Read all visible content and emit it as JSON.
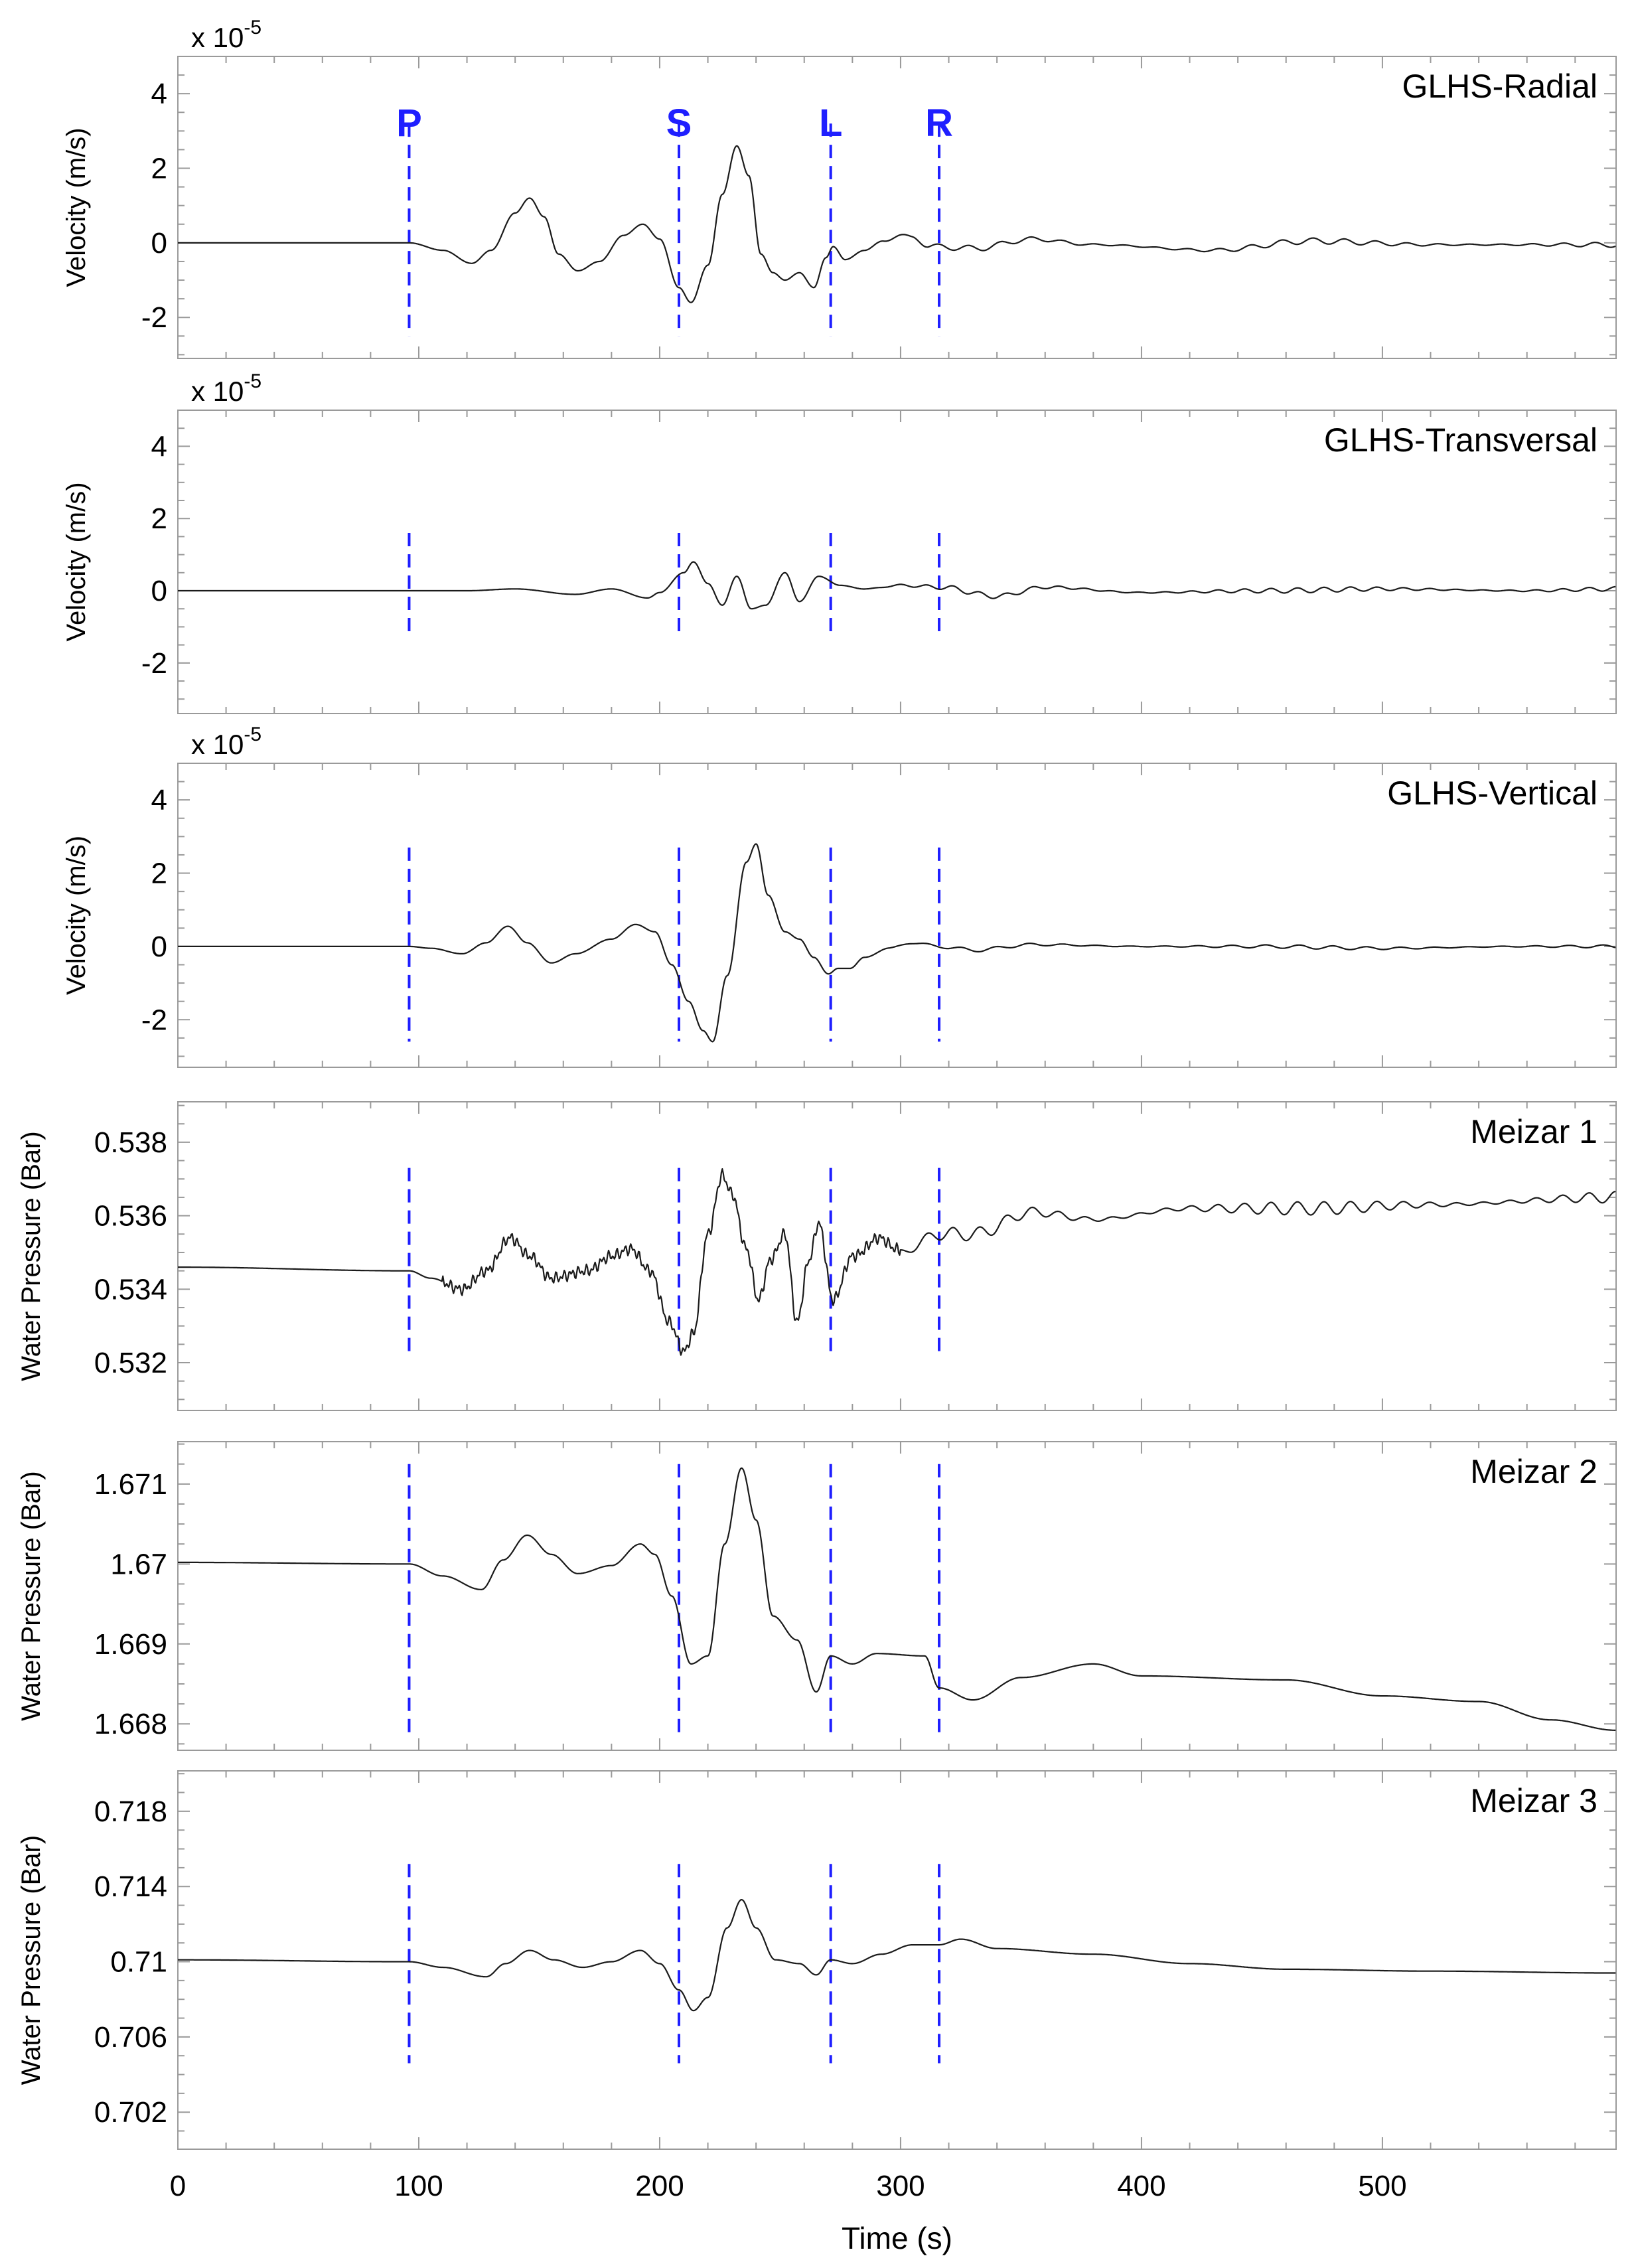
{
  "chart_data": {
    "type": "line",
    "xlabel": "Time (s)",
    "xlim": [
      0,
      597
    ],
    "xticks": [
      0,
      100,
      200,
      300,
      400,
      500
    ],
    "xtick_labels": [
      "0",
      "100",
      "200",
      "300",
      "400",
      "500"
    ],
    "phase_markers": [
      {
        "label": "P",
        "t": 96
      },
      {
        "label": "S",
        "t": 208
      },
      {
        "label": "L",
        "t": 271
      },
      {
        "label": "R",
        "t": 316
      }
    ],
    "panels": [
      {
        "id": "glhs-radial",
        "title": "GLHS-Radial",
        "ylabel": "Velocity (m/s)",
        "exponent_prefix": "x 10",
        "exponent_power": "-5",
        "ylim": [
          -3.1,
          5
        ],
        "yticks": [
          -2,
          0,
          2,
          4
        ],
        "ytick_labels": [
          "-2",
          "0",
          "2",
          "4"
        ],
        "minor_step": 0.5,
        "marker_range": [
          -2.5,
          3.2
        ],
        "wiggle": {
          "amp": 0.08,
          "period": 13
        },
        "points": [
          [
            0,
            0
          ],
          [
            96,
            0
          ],
          [
            110,
            -0.2
          ],
          [
            122,
            -0.55
          ],
          [
            130,
            -0.2
          ],
          [
            140,
            0.8
          ],
          [
            146,
            1.2
          ],
          [
            152,
            0.7
          ],
          [
            158,
            -0.3
          ],
          [
            166,
            -0.75
          ],
          [
            175,
            -0.5
          ],
          [
            185,
            0.2
          ],
          [
            193,
            0.5
          ],
          [
            200,
            0.1
          ],
          [
            208,
            -1.2
          ],
          [
            213,
            -1.6
          ],
          [
            220,
            -0.6
          ],
          [
            226,
            1.3
          ],
          [
            232,
            2.6
          ],
          [
            237,
            1.8
          ],
          [
            242,
            -0.3
          ],
          [
            247,
            -0.8
          ],
          [
            252,
            -1.0
          ],
          [
            258,
            -0.8
          ],
          [
            264,
            -1.2
          ],
          [
            269,
            -0.4
          ],
          [
            272,
            -0.1
          ],
          [
            277,
            -0.45
          ],
          [
            285,
            -0.2
          ],
          [
            293,
            0.05
          ],
          [
            300,
            0.2
          ],
          [
            305,
            0.15
          ],
          [
            312,
            -0.1
          ],
          [
            316,
            -0.1
          ],
          [
            330,
            -0.15
          ],
          [
            355,
            0.1
          ],
          [
            380,
            -0.05
          ],
          [
            430,
            -0.2
          ],
          [
            470,
            0.05
          ],
          [
            520,
            -0.05
          ],
          [
            597,
            -0.05
          ]
        ]
      },
      {
        "id": "glhs-transversal",
        "title": "GLHS-Transversal",
        "ylabel": "Velocity (m/s)",
        "exponent_prefix": "x 10",
        "exponent_power": "-5",
        "ylim": [
          -3.4,
          5
        ],
        "yticks": [
          -2,
          0,
          2,
          4
        ],
        "ytick_labels": [
          "-2",
          "0",
          "2",
          "4"
        ],
        "minor_step": 0.5,
        "marker_range": [
          -1.3,
          1.6
        ],
        "wiggle": {
          "amp": 0.07,
          "period": 11
        },
        "points": [
          [
            0,
            0
          ],
          [
            120,
            0
          ],
          [
            140,
            0.05
          ],
          [
            165,
            -0.1
          ],
          [
            180,
            0.05
          ],
          [
            195,
            -0.2
          ],
          [
            200,
            -0.05
          ],
          [
            210,
            0.5
          ],
          [
            214,
            0.8
          ],
          [
            220,
            0.2
          ],
          [
            226,
            -0.4
          ],
          [
            232,
            0.4
          ],
          [
            238,
            -0.5
          ],
          [
            244,
            -0.4
          ],
          [
            252,
            0.5
          ],
          [
            258,
            -0.3
          ],
          [
            266,
            0.4
          ],
          [
            275,
            0.15
          ],
          [
            285,
            0.05
          ],
          [
            300,
            0.15
          ],
          [
            316,
            0.1
          ],
          [
            340,
            -0.15
          ],
          [
            360,
            0.1
          ],
          [
            400,
            -0.05
          ],
          [
            450,
            0
          ],
          [
            500,
            0.05
          ],
          [
            560,
            0
          ],
          [
            597,
            0.05
          ]
        ]
      },
      {
        "id": "glhs-vertical",
        "title": "GLHS-Vertical",
        "ylabel": "Velocity (m/s)",
        "exponent_prefix": "x 10",
        "exponent_power": "-5",
        "ylim": [
          -3.3,
          5
        ],
        "yticks": [
          -2,
          0,
          2,
          4
        ],
        "ytick_labels": [
          "-2",
          "0",
          "2",
          "4"
        ],
        "minor_step": 0.5,
        "marker_range": [
          -2.6,
          2.7
        ],
        "wiggle": {
          "amp": 0.05,
          "period": 14
        },
        "points": [
          [
            0,
            0
          ],
          [
            96,
            0
          ],
          [
            105,
            -0.05
          ],
          [
            118,
            -0.2
          ],
          [
            128,
            0.1
          ],
          [
            137,
            0.55
          ],
          [
            145,
            0.1
          ],
          [
            155,
            -0.45
          ],
          [
            165,
            -0.2
          ],
          [
            180,
            0.2
          ],
          [
            190,
            0.6
          ],
          [
            198,
            0.4
          ],
          [
            205,
            -0.5
          ],
          [
            212,
            -1.5
          ],
          [
            218,
            -2.3
          ],
          [
            222,
            -2.6
          ],
          [
            228,
            -0.8
          ],
          [
            236,
            2.3
          ],
          [
            240,
            2.8
          ],
          [
            245,
            1.4
          ],
          [
            252,
            0.4
          ],
          [
            258,
            0.2
          ],
          [
            264,
            -0.3
          ],
          [
            270,
            -0.75
          ],
          [
            274,
            -0.6
          ],
          [
            279,
            -0.6
          ],
          [
            285,
            -0.3
          ],
          [
            295,
            -0.05
          ],
          [
            305,
            0.1
          ],
          [
            316,
            0
          ],
          [
            330,
            -0.1
          ],
          [
            355,
            0.05
          ],
          [
            400,
            0
          ],
          [
            450,
            0
          ],
          [
            500,
            -0.05
          ],
          [
            560,
            0
          ],
          [
            597,
            0
          ]
        ]
      },
      {
        "id": "meizar-1",
        "title": "Meizar 1",
        "ylabel": "Water Pressure (Bar)",
        "ylim": [
          0.5307,
          0.5391
        ],
        "yticks": [
          0.532,
          0.534,
          0.536,
          0.538
        ],
        "ytick_labels": [
          "0.532",
          "0.534",
          "0.536",
          "0.538"
        ],
        "minor_step": 0.0005,
        "marker_range": [
          0.5322,
          0.5373
        ],
        "noise": {
          "amp": 0.00018,
          "start": 110,
          "end": 300,
          "period": 2.3
        },
        "wiggle": {
          "amp": 0.00018,
          "period": 11
        },
        "points": [
          [
            0,
            0.5346
          ],
          [
            96,
            0.5345
          ],
          [
            105,
            0.5343
          ],
          [
            118,
            0.534
          ],
          [
            128,
            0.5345
          ],
          [
            138,
            0.5354
          ],
          [
            146,
            0.5349
          ],
          [
            155,
            0.5343
          ],
          [
            170,
            0.5345
          ],
          [
            180,
            0.5349
          ],
          [
            188,
            0.5351
          ],
          [
            196,
            0.5345
          ],
          [
            204,
            0.5331
          ],
          [
            210,
            0.5323
          ],
          [
            214,
            0.5328
          ],
          [
            220,
            0.5355
          ],
          [
            226,
            0.5371
          ],
          [
            230,
            0.5366
          ],
          [
            236,
            0.5351
          ],
          [
            241,
            0.5337
          ],
          [
            246,
            0.5348
          ],
          [
            252,
            0.5355
          ],
          [
            257,
            0.5331
          ],
          [
            262,
            0.5348
          ],
          [
            266,
            0.5358
          ],
          [
            272,
            0.5337
          ],
          [
            280,
            0.5349
          ],
          [
            292,
            0.5354
          ],
          [
            300,
            0.535
          ],
          [
            316,
            0.5355
          ],
          [
            330,
            0.5355
          ],
          [
            355,
            0.5361
          ],
          [
            380,
            0.5359
          ],
          [
            420,
            0.5362
          ],
          [
            470,
            0.5362
          ],
          [
            520,
            0.5363
          ],
          [
            597,
            0.5365
          ]
        ]
      },
      {
        "id": "meizar-2",
        "title": "Meizar 2",
        "ylabel": "Water Pressure (Bar)",
        "ylim": [
          1.66767,
          1.67153
        ],
        "yticks": [
          1.668,
          1.669,
          1.67,
          1.671
        ],
        "ytick_labels": [
          "1.668",
          "1.669",
          "1.67",
          "1.671"
        ],
        "minor_step": 0.00025,
        "marker_range": [
          1.66785,
          1.67125
        ],
        "points": [
          [
            0,
            1.67002
          ],
          [
            96,
            1.67
          ],
          [
            110,
            1.66985
          ],
          [
            126,
            1.66968
          ],
          [
            135,
            1.67005
          ],
          [
            145,
            1.67036
          ],
          [
            155,
            1.67012
          ],
          [
            166,
            1.66988
          ],
          [
            180,
            1.66998
          ],
          [
            192,
            1.67025
          ],
          [
            198,
            1.67012
          ],
          [
            205,
            1.6696
          ],
          [
            213,
            1.66875
          ],
          [
            220,
            1.66885
          ],
          [
            227,
            1.67025
          ],
          [
            234,
            1.6712
          ],
          [
            240,
            1.67055
          ],
          [
            247,
            1.66935
          ],
          [
            257,
            1.66905
          ],
          [
            265,
            1.6684
          ],
          [
            271,
            1.66885
          ],
          [
            280,
            1.66875
          ],
          [
            290,
            1.66888
          ],
          [
            310,
            1.66885
          ],
          [
            316,
            1.66845
          ],
          [
            330,
            1.6683
          ],
          [
            350,
            1.66858
          ],
          [
            380,
            1.66875
          ],
          [
            400,
            1.6686
          ],
          [
            460,
            1.66855
          ],
          [
            500,
            1.66835
          ],
          [
            540,
            1.66828
          ],
          [
            570,
            1.66805
          ],
          [
            597,
            1.66792
          ]
        ]
      },
      {
        "id": "meizar-3",
        "title": "Meizar 3",
        "ylabel": "Water Pressure (Bar)",
        "ylim": [
          0.70003,
          0.72015
        ],
        "yticks": [
          0.702,
          0.706,
          0.71,
          0.714,
          0.718
        ],
        "ytick_labels": [
          "0.702",
          "0.706",
          "0.71",
          "0.714",
          "0.718"
        ],
        "minor_step": 0.001,
        "marker_range": [
          0.7046,
          0.7152
        ],
        "points": [
          [
            0,
            0.7101
          ],
          [
            96,
            0.71
          ],
          [
            110,
            0.7097
          ],
          [
            128,
            0.7092
          ],
          [
            136,
            0.7099
          ],
          [
            146,
            0.7106
          ],
          [
            156,
            0.7101
          ],
          [
            168,
            0.7097
          ],
          [
            180,
            0.71
          ],
          [
            192,
            0.7106
          ],
          [
            200,
            0.7099
          ],
          [
            208,
            0.7085
          ],
          [
            214,
            0.7074
          ],
          [
            220,
            0.7081
          ],
          [
            228,
            0.7118
          ],
          [
            234,
            0.7133
          ],
          [
            240,
            0.7118
          ],
          [
            248,
            0.7101
          ],
          [
            258,
            0.7099
          ],
          [
            265,
            0.7093
          ],
          [
            271,
            0.7101
          ],
          [
            280,
            0.7099
          ],
          [
            292,
            0.7104
          ],
          [
            305,
            0.7109
          ],
          [
            316,
            0.7109
          ],
          [
            325,
            0.7112
          ],
          [
            340,
            0.7107
          ],
          [
            380,
            0.7104
          ],
          [
            420,
            0.7099
          ],
          [
            460,
            0.7096
          ],
          [
            520,
            0.7095
          ],
          [
            597,
            0.7094
          ]
        ]
      }
    ]
  }
}
